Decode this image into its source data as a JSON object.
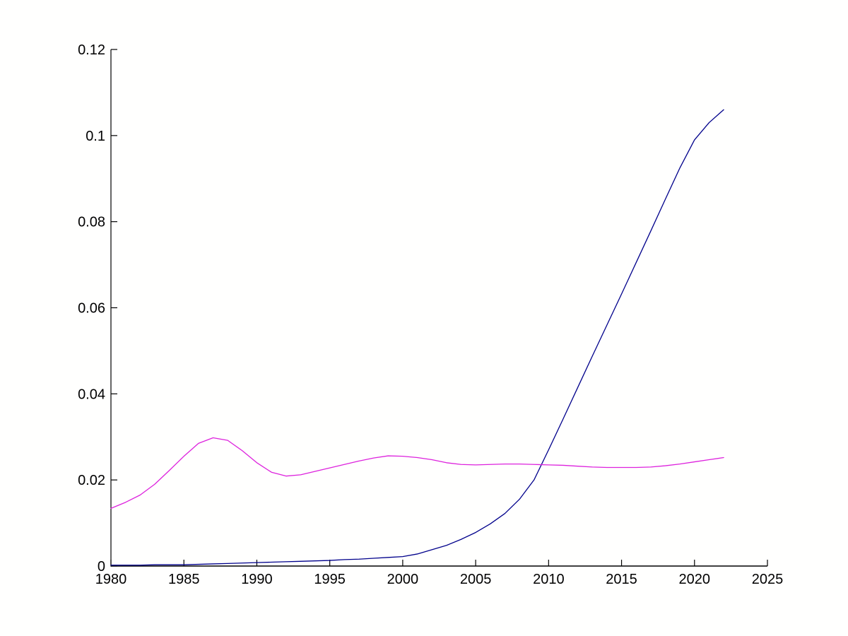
{
  "figure": {
    "background": "#fffffe",
    "axis_color": "#000000",
    "tick_label_color": "#000000"
  },
  "chart_data": {
    "type": "line",
    "title": "",
    "xlabel": "",
    "ylabel": "",
    "xlim": [
      1980,
      2025
    ],
    "ylim": [
      0,
      0.12
    ],
    "grid": false,
    "legend_position": "none",
    "box": false,
    "xticks": [
      1980,
      1985,
      1990,
      1995,
      2000,
      2005,
      2010,
      2015,
      2020,
      2025
    ],
    "xtick_labels": [
      "1980",
      "1985",
      "1990",
      "1995",
      "2000",
      "2005",
      "2010",
      "2015",
      "2020",
      "2025"
    ],
    "yticks": [
      0,
      0.02,
      0.04,
      0.06,
      0.08,
      0.1,
      0.12
    ],
    "ytick_labels": [
      "0",
      "0.02",
      "0.04",
      "0.06",
      "0.08",
      "0.1",
      "0.12"
    ],
    "x": [
      1980,
      1981,
      1982,
      1983,
      1984,
      1985,
      1986,
      1987,
      1988,
      1989,
      1990,
      1991,
      1992,
      1993,
      1994,
      1995,
      1996,
      1997,
      1998,
      1999,
      2000,
      2001,
      2002,
      2003,
      2004,
      2005,
      2006,
      2007,
      2008,
      2009,
      2010,
      2011,
      2012,
      2013,
      2014,
      2015,
      2016,
      2017,
      2018,
      2019,
      2020,
      2021,
      2022
    ],
    "series": [
      {
        "name": "dark-blue-rising-series",
        "color": "#00008B",
        "line_width": 1.3,
        "values": [
          0.0002,
          0.0002,
          0.0002,
          0.0003,
          0.0003,
          0.0003,
          0.0004,
          0.0005,
          0.0006,
          0.0007,
          0.0008,
          0.0009,
          0.001,
          0.0011,
          0.0012,
          0.0013,
          0.0015,
          0.0016,
          0.0018,
          0.002,
          0.0022,
          0.0028,
          0.0038,
          0.0048,
          0.0062,
          0.0078,
          0.0098,
          0.0122,
          0.0155,
          0.02,
          0.027,
          0.0342,
          0.0415,
          0.0488,
          0.056,
          0.0632,
          0.0705,
          0.0778,
          0.0852,
          0.0925,
          0.099,
          0.103,
          0.106
        ]
      },
      {
        "name": "magenta-flat-series",
        "color": "#DD22DD",
        "line_width": 1.3,
        "values": [
          0.0134,
          0.0148,
          0.0165,
          0.019,
          0.0222,
          0.0255,
          0.0285,
          0.0298,
          0.0292,
          0.0268,
          0.024,
          0.0218,
          0.0209,
          0.0212,
          0.022,
          0.0228,
          0.0236,
          0.0244,
          0.0251,
          0.0256,
          0.0255,
          0.0252,
          0.0247,
          0.024,
          0.0236,
          0.0235,
          0.0236,
          0.0237,
          0.0237,
          0.0236,
          0.0235,
          0.0234,
          0.0232,
          0.023,
          0.0229,
          0.0229,
          0.0229,
          0.023,
          0.0233,
          0.0237,
          0.0242,
          0.0247,
          0.0252
        ]
      }
    ]
  }
}
